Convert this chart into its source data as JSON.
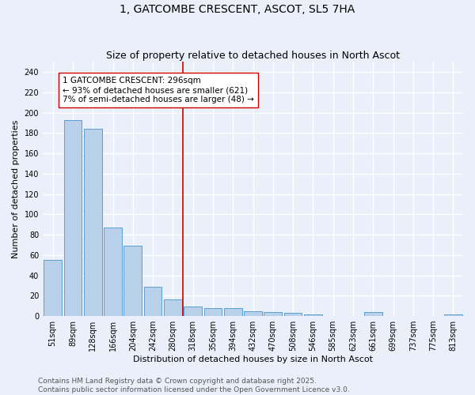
{
  "title": "1, GATCOMBE CRESCENT, ASCOT, SL5 7HA",
  "subtitle": "Size of property relative to detached houses in North Ascot",
  "xlabel": "Distribution of detached houses by size in North Ascot",
  "ylabel": "Number of detached properties",
  "categories": [
    "51sqm",
    "89sqm",
    "128sqm",
    "166sqm",
    "204sqm",
    "242sqm",
    "280sqm",
    "318sqm",
    "356sqm",
    "394sqm",
    "432sqm",
    "470sqm",
    "508sqm",
    "546sqm",
    "585sqm",
    "623sqm",
    "661sqm",
    "699sqm",
    "737sqm",
    "775sqm",
    "813sqm"
  ],
  "values": [
    55,
    193,
    184,
    87,
    69,
    29,
    16,
    9,
    8,
    8,
    5,
    4,
    3,
    2,
    0,
    0,
    4,
    0,
    0,
    0,
    2
  ],
  "bar_color": "#b8d0ea",
  "bar_edge_color": "#5a9fd4",
  "property_line_x": 6.5,
  "property_line_color": "#cc0000",
  "annotation_text": "1 GATCOMBE CRESCENT: 296sqm\n← 93% of detached houses are smaller (621)\n7% of semi-detached houses are larger (48) →",
  "annotation_box_color": "#ffffff",
  "annotation_box_edge_color": "#cc0000",
  "ylim": [
    0,
    250
  ],
  "yticks": [
    0,
    20,
    40,
    60,
    80,
    100,
    120,
    140,
    160,
    180,
    200,
    220,
    240
  ],
  "footer_text": "Contains HM Land Registry data © Crown copyright and database right 2025.\nContains public sector information licensed under the Open Government Licence v3.0.",
  "bg_color": "#eaf0fa",
  "grid_color": "#ffffff",
  "title_fontsize": 10,
  "subtitle_fontsize": 9,
  "axis_label_fontsize": 8,
  "tick_fontsize": 7,
  "annotation_fontsize": 7.5,
  "footer_fontsize": 6.5
}
